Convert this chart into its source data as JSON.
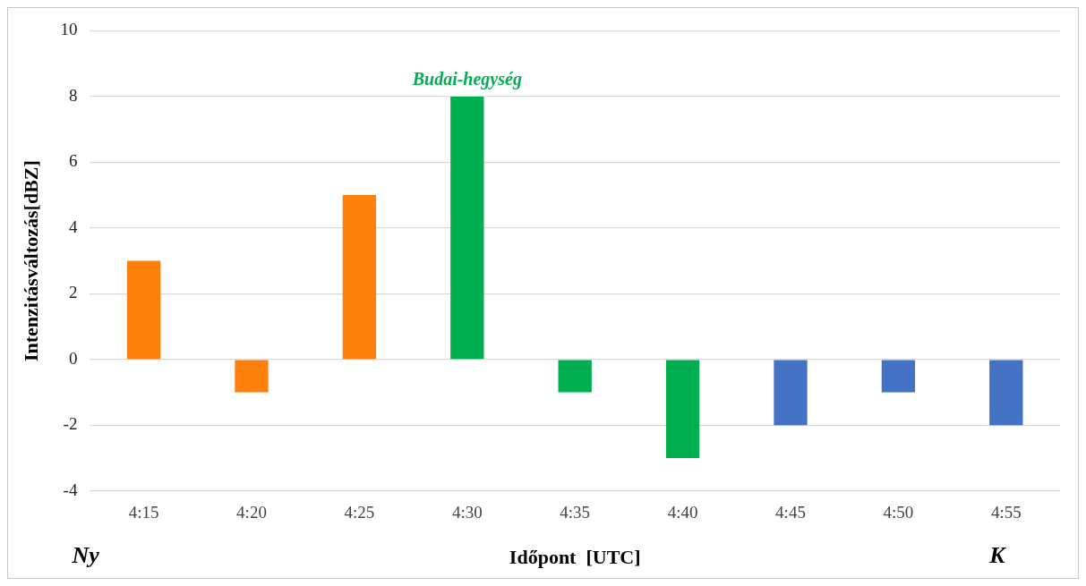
{
  "chart_data": {
    "type": "bar",
    "categories": [
      "4:15",
      "4:20",
      "4:25",
      "4:30",
      "4:35",
      "4:40",
      "4:45",
      "4:50",
      "4:55"
    ],
    "values": [
      3,
      -1,
      5,
      8,
      -1,
      -3,
      -2,
      -1,
      -2
    ],
    "colors": [
      "#fd7f0c",
      "#fd7f0c",
      "#fd7f0c",
      "#00b050",
      "#00b050",
      "#00b050",
      "#4472c4",
      "#4472c4",
      "#4472c4"
    ],
    "ylim": [
      -4,
      10
    ],
    "yticks": [
      -4,
      -2,
      0,
      2,
      4,
      6,
      8,
      10
    ],
    "grid": "y",
    "xlabel": "Időpont  [UTC]",
    "ylabel": "Intenzitásváltozás[dBZ]",
    "annotations": [
      {
        "text": "Budai-hegység",
        "x": "4:30",
        "y": 8
      },
      "Ny",
      "K"
    ]
  }
}
